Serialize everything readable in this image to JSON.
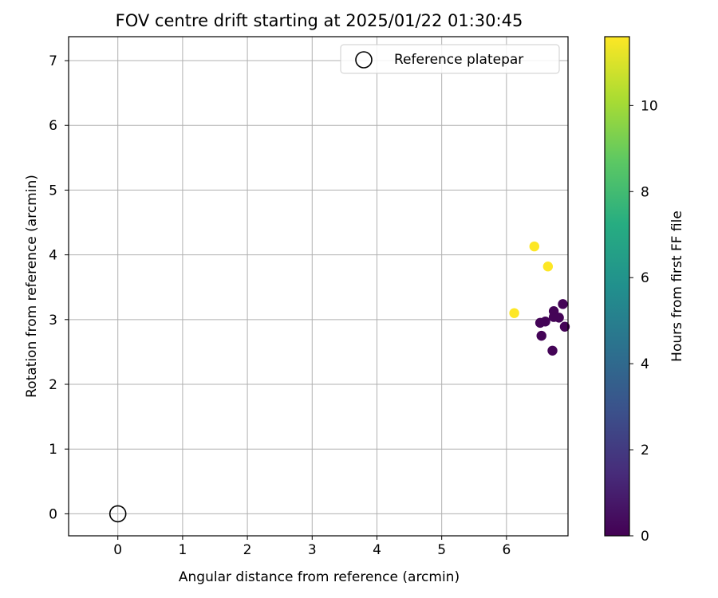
{
  "chart_data": {
    "type": "scatter",
    "title": "FOV centre drift starting at 2025/01/22 01:30:45",
    "xlabel": "Angular distance from reference (arcmin)",
    "ylabel": "Rotation from reference (arcmin)",
    "xlim": [
      -0.76,
      6.95
    ],
    "ylim": [
      -0.34,
      7.37
    ],
    "xticks": [
      0,
      1,
      2,
      3,
      4,
      5,
      6
    ],
    "yticks": [
      0,
      1,
      2,
      3,
      4,
      5,
      6,
      7
    ],
    "grid": true,
    "legend": {
      "position": "top-right",
      "entries": [
        "Reference platepar"
      ]
    },
    "reference_point": {
      "x": 0,
      "y": 0,
      "label": "Reference platepar"
    },
    "colorbar": {
      "label": "Hours from first FF file",
      "range": [
        0,
        11.6
      ],
      "ticks": [
        0,
        2,
        4,
        6,
        8,
        10
      ],
      "colormap": "viridis"
    },
    "points": [
      {
        "x": 6.12,
        "y": 3.1,
        "c": 11.6
      },
      {
        "x": 6.43,
        "y": 4.13,
        "c": 11.6
      },
      {
        "x": 6.64,
        "y": 3.82,
        "c": 11.6
      },
      {
        "x": 6.52,
        "y": 2.95,
        "c": 0.1
      },
      {
        "x": 6.6,
        "y": 2.97,
        "c": 0.1
      },
      {
        "x": 6.54,
        "y": 2.75,
        "c": 0.1
      },
      {
        "x": 6.71,
        "y": 2.52,
        "c": 0.1
      },
      {
        "x": 6.73,
        "y": 3.13,
        "c": 0.1
      },
      {
        "x": 6.73,
        "y": 3.04,
        "c": 0.1
      },
      {
        "x": 6.81,
        "y": 3.03,
        "c": 0.1
      },
      {
        "x": 6.87,
        "y": 3.24,
        "c": 0.1
      },
      {
        "x": 6.9,
        "y": 2.89,
        "c": 0.1
      }
    ]
  }
}
